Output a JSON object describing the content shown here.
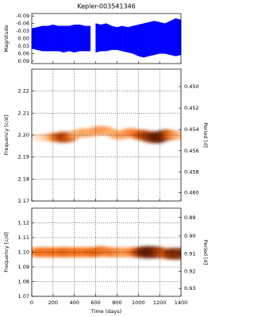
{
  "chart_data": [
    {
      "type": "band",
      "title": "Kepler-003541346",
      "ylabel": "Magnitude",
      "color": "#0000ff",
      "y_inverted": true,
      "grid": false,
      "x": [
        0,
        50,
        100,
        150,
        200,
        250,
        300,
        350,
        400,
        450,
        500,
        550,
        575,
        600,
        650,
        700,
        750,
        800,
        850,
        900,
        950,
        1000,
        1050,
        1100,
        1150,
        1200,
        1250,
        1300,
        1350,
        1400
      ],
      "low": [
        -0.04,
        -0.045,
        -0.05,
        -0.05,
        -0.055,
        -0.05,
        -0.05,
        -0.05,
        -0.055,
        -0.055,
        -0.05,
        -0.05,
        null,
        -0.06,
        -0.055,
        -0.06,
        -0.05,
        -0.045,
        -0.05,
        -0.045,
        -0.05,
        -0.055,
        -0.06,
        -0.065,
        -0.07,
        -0.065,
        -0.06,
        -0.07,
        -0.08,
        -0.075
      ],
      "high": [
        0.04,
        0.045,
        0.05,
        0.05,
        0.05,
        0.05,
        0.055,
        0.05,
        0.055,
        0.05,
        0.05,
        0.05,
        null,
        0.055,
        0.05,
        0.05,
        0.045,
        0.045,
        0.05,
        0.055,
        0.06,
        0.07,
        0.075,
        0.07,
        0.065,
        0.06,
        0.06,
        0.065,
        0.07,
        0.065
      ],
      "xlim": [
        0,
        1400
      ],
      "xticks": [
        0,
        200,
        400,
        600,
        800,
        1000,
        1200,
        1400
      ],
      "ylim": [
        -0.1,
        0.1
      ],
      "yticks": [
        -0.09,
        -0.06,
        -0.03,
        {
          "value": 0,
          "label": "0.00"
        },
        0.03,
        0.06,
        0.09
      ]
    },
    {
      "type": "heatmap",
      "ylabel": "Frequency [c/d]",
      "y2label": "Period [d]",
      "y2scale": "reciprocal",
      "grid": true,
      "cmap": [
        "#fff5eb",
        "#fdae6b",
        "#f16913",
        "#a63603",
        "#5a1a02"
      ],
      "x": [
        50,
        100,
        150,
        200,
        250,
        300,
        350,
        400,
        450,
        500,
        550,
        600,
        650,
        700,
        750,
        800,
        850,
        900,
        950,
        1000,
        1050,
        1100,
        1150,
        1200,
        1250,
        1300,
        1350,
        1400
      ],
      "y": [
        2.199,
        2.199,
        2.199,
        2.199,
        2.199,
        2.199,
        2.199,
        2.2,
        2.201,
        2.201,
        2.201,
        2.202,
        2.202,
        2.202,
        2.201,
        2.2,
        2.2,
        2.201,
        2.201,
        2.2,
        2.2,
        2.199,
        2.199,
        2.199,
        2.2,
        2.2,
        2.2,
        2.2
      ],
      "power": [
        0.05,
        0.08,
        0.15,
        0.35,
        0.6,
        0.75,
        0.6,
        0.3,
        0.25,
        0.3,
        0.25,
        0.3,
        0.35,
        0.3,
        0.25,
        0.3,
        0.3,
        0.35,
        0.4,
        0.55,
        0.7,
        0.8,
        0.95,
        1.0,
        0.85,
        0.5,
        0.3,
        0.2
      ],
      "xlim": [
        0,
        1400
      ],
      "xticks": [
        0,
        200,
        400,
        600,
        800,
        1000,
        1200,
        1400
      ],
      "ylim": [
        2.17,
        2.23
      ],
      "yticks": [
        2.17,
        2.18,
        2.19,
        {
          "value": 2.2,
          "label": "2.20"
        },
        2.21,
        2.22
      ],
      "y2lim": [
        0.4608,
        0.4484
      ],
      "y2ticks": [
        {
          "value": 0.45,
          "label": "0.450"
        },
        {
          "value": 0.452,
          "label": "0.452"
        },
        {
          "value": 0.454,
          "label": "0.454"
        },
        {
          "value": 0.456,
          "label": "0.456"
        },
        {
          "value": 0.458,
          "label": "0.458"
        },
        {
          "value": 0.46,
          "label": "0.460"
        }
      ]
    },
    {
      "type": "heatmap",
      "ylabel": "Frequency [c/d]",
      "y2label": "Period [d]",
      "y2scale": "reciprocal",
      "grid": true,
      "xlabel": "Time (days)",
      "cmap": [
        "#fff5eb",
        "#fdae6b",
        "#f16913",
        "#a63603",
        "#5a1a02"
      ],
      "x": [
        0,
        50,
        100,
        150,
        200,
        250,
        300,
        350,
        400,
        450,
        500,
        550,
        600,
        650,
        700,
        750,
        800,
        850,
        900,
        950,
        1000,
        1050,
        1100,
        1150,
        1200,
        1250,
        1300,
        1350,
        1400
      ],
      "y": [
        1.1,
        1.1,
        1.1,
        1.1,
        1.1,
        1.1,
        1.1,
        1.1,
        1.1,
        1.1,
        1.1,
        1.1,
        1.1,
        1.101,
        1.1,
        1.1,
        1.1,
        1.1,
        1.1,
        1.1,
        1.1,
        1.1,
        1.1,
        1.1,
        1.1,
        1.099,
        1.099,
        1.099,
        1.099
      ],
      "power": [
        0.3,
        0.45,
        0.5,
        0.45,
        0.5,
        0.45,
        0.55,
        0.5,
        0.45,
        0.5,
        0.45,
        0.5,
        0.55,
        0.5,
        0.45,
        0.45,
        0.4,
        0.35,
        0.35,
        0.45,
        0.7,
        0.95,
        1.0,
        0.95,
        0.75,
        0.6,
        0.85,
        0.9,
        0.85
      ],
      "xlim": [
        0,
        1400
      ],
      "xticks": [
        0,
        200,
        400,
        600,
        800,
        1000,
        1200,
        1400
      ],
      "ylim": [
        1.07,
        1.13
      ],
      "yticks": [
        1.07,
        1.08,
        1.09,
        {
          "value": 1.1,
          "label": "1.10"
        },
        1.11,
        1.12
      ],
      "y2lim": [
        0.9346,
        0.885
      ],
      "y2ticks": [
        0.89,
        {
          "value": 0.9,
          "label": "0.90"
        },
        0.91,
        0.92,
        0.93
      ]
    }
  ]
}
